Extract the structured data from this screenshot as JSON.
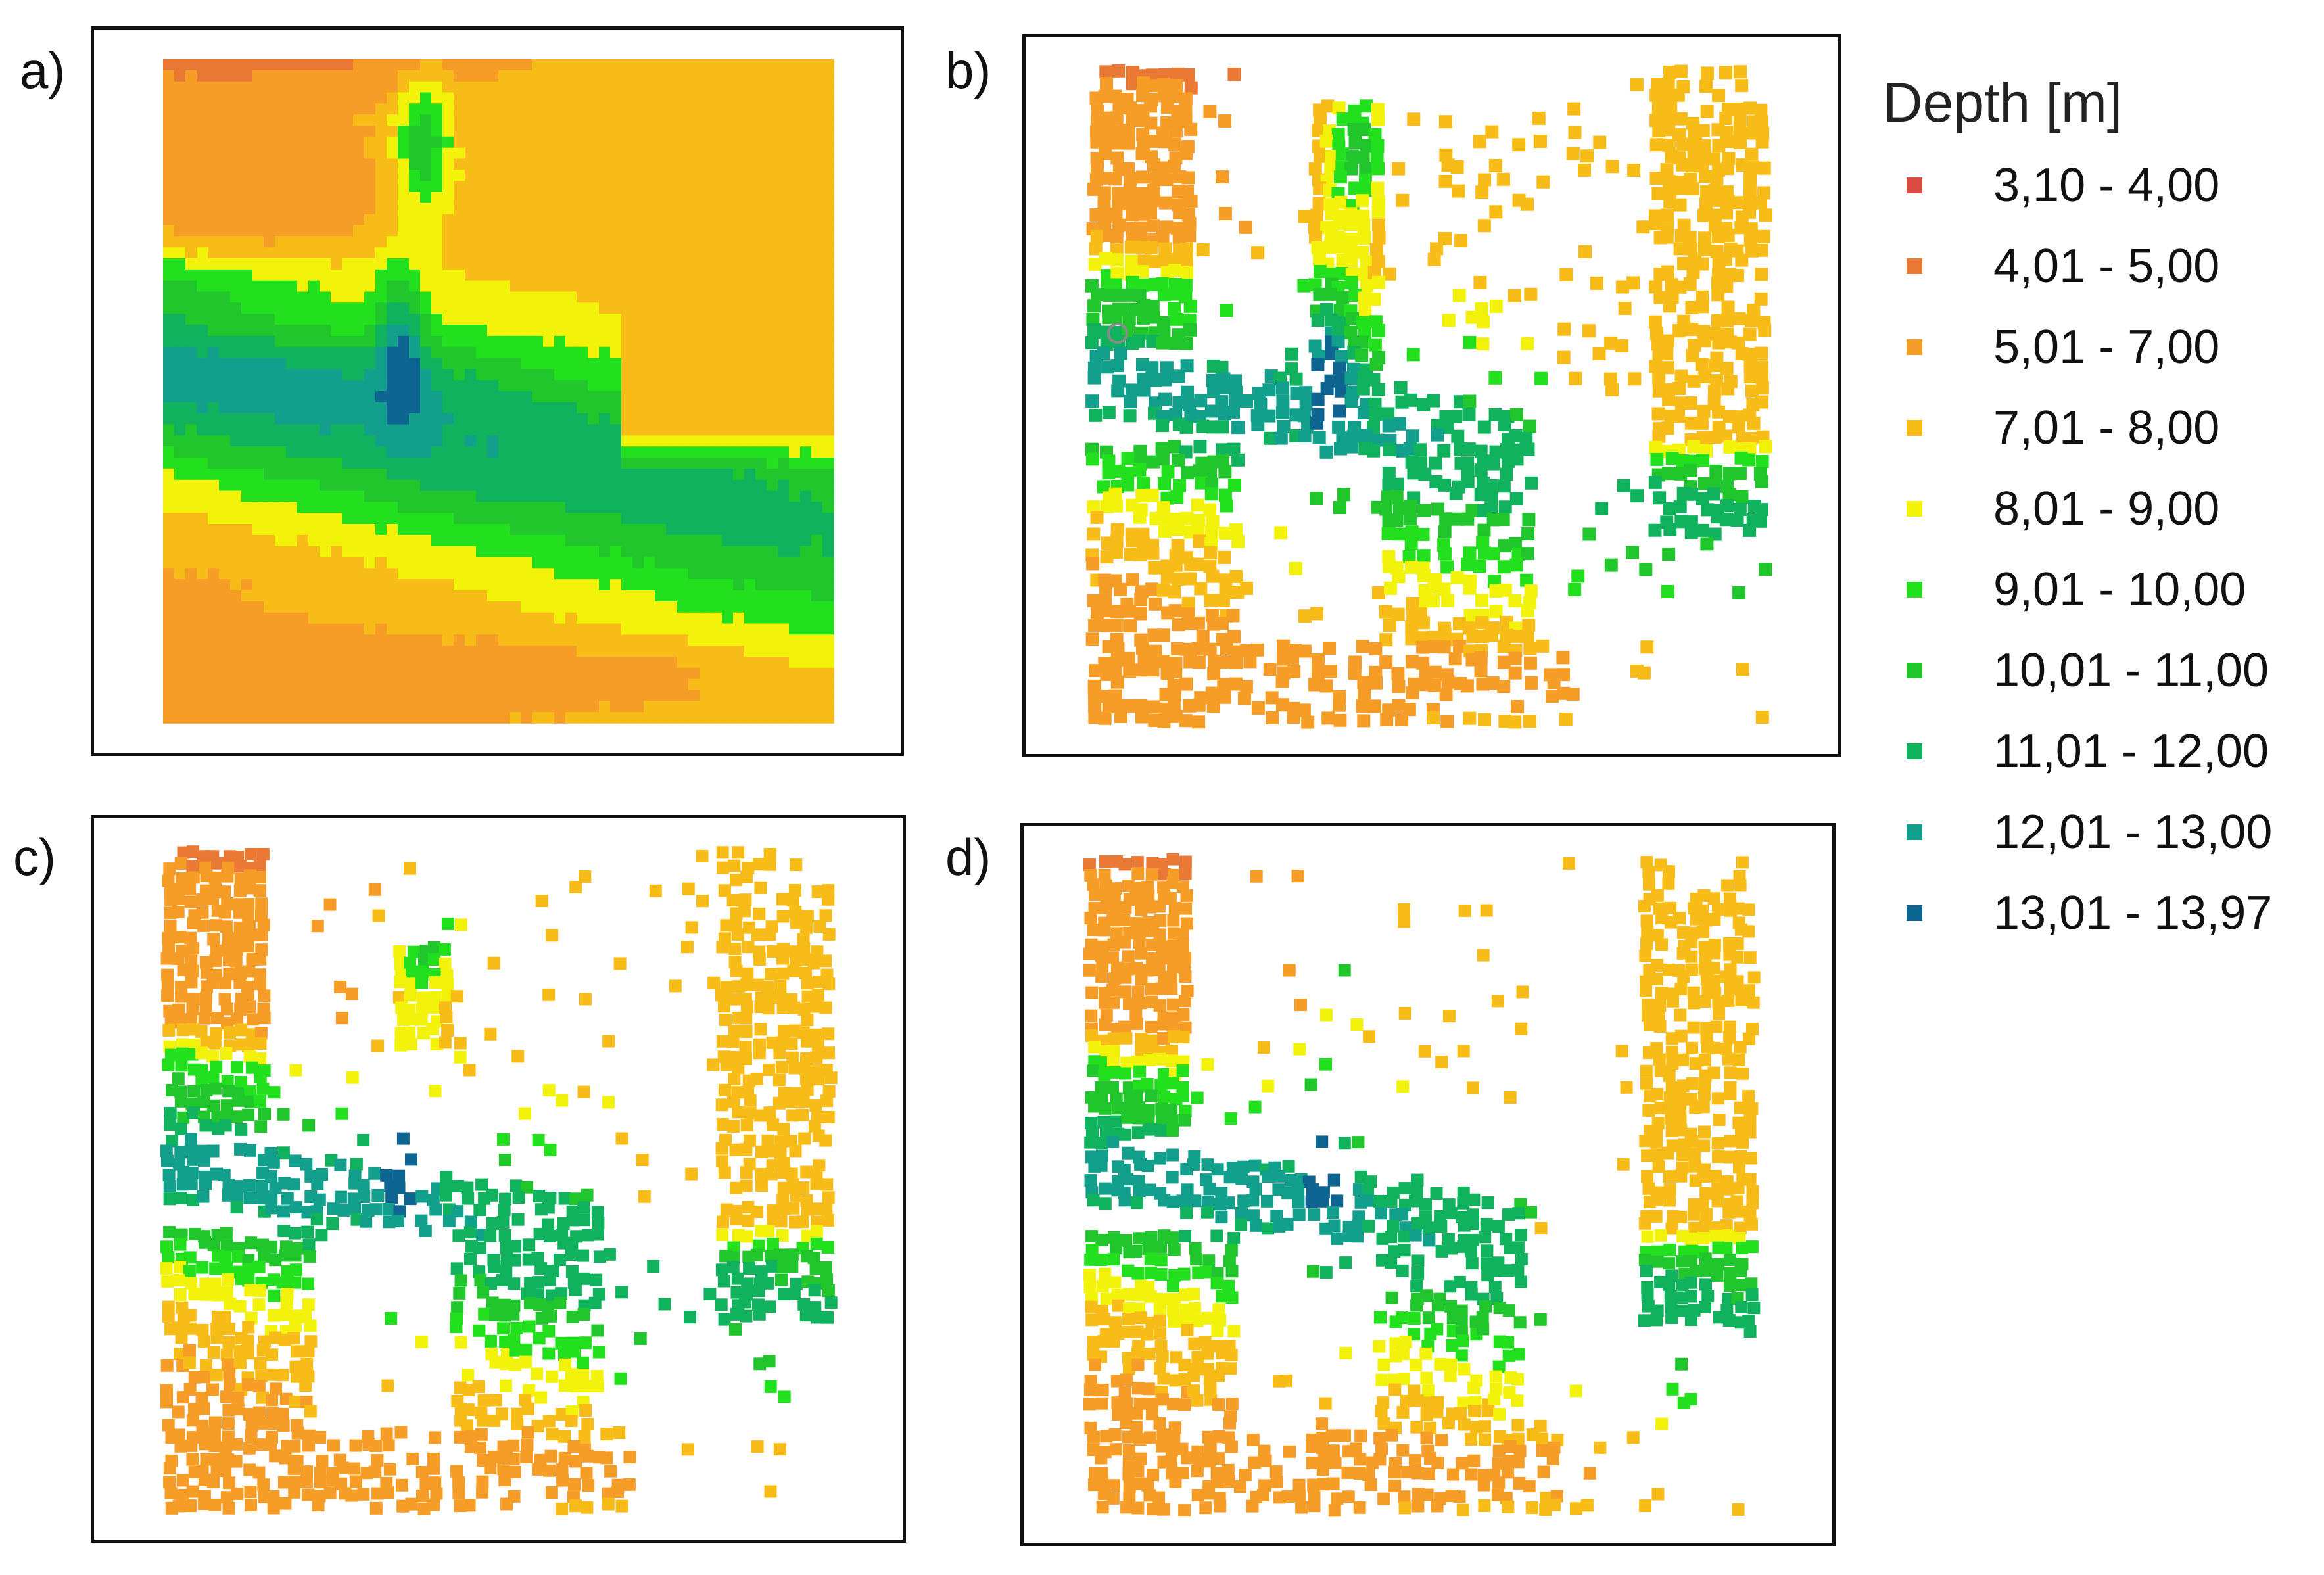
{
  "panels": [
    {
      "label": "a)",
      "kind": "continuous"
    },
    {
      "label": "b)",
      "kind": "samples",
      "variant": "b"
    },
    {
      "label": "c)",
      "kind": "samples",
      "variant": "c"
    },
    {
      "label": "d)",
      "kind": "samples",
      "variant": "d"
    }
  ],
  "legend": {
    "title": "Depth [m]",
    "classes": [
      {
        "label": "3,10 - 4,00",
        "color": "#D94B43"
      },
      {
        "label": "4,01 - 5,00",
        "color": "#EA7935"
      },
      {
        "label": "5,01 - 7,00",
        "color": "#F59D26"
      },
      {
        "label": "7,01 - 8,00",
        "color": "#F8BC18"
      },
      {
        "label": "8,01 - 9,00",
        "color": "#F2F20A"
      },
      {
        "label": "9,01 - 10,00",
        "color": "#23E01E"
      },
      {
        "label": "10,01 - 11,00",
        "color": "#21C62D"
      },
      {
        "label": "11,01 - 12,00",
        "color": "#11B25E"
      },
      {
        "label": "12,01 - 13,00",
        "color": "#12A08C"
      },
      {
        "label": "13,01 - 13,97",
        "color": "#0E6591"
      }
    ]
  },
  "chart_data": {
    "type": "heatmap",
    "description_panels": [
      "a)",
      "b)",
      "c)",
      "d)"
    ],
    "variable": "Depth [m]",
    "value_range": [
      3.1,
      13.97
    ],
    "class_breaks": [
      3.1,
      4.0,
      5.0,
      7.0,
      8.0,
      9.0,
      10.0,
      11.0,
      12.0,
      13.0,
      13.97
    ]
  }
}
